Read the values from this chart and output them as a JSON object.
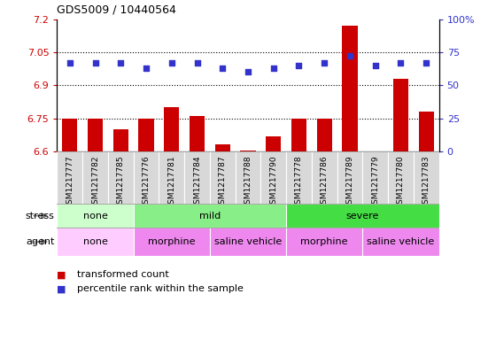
{
  "title": "GDS5009 / 10440564",
  "samples": [
    "GSM1217777",
    "GSM1217782",
    "GSM1217785",
    "GSM1217776",
    "GSM1217781",
    "GSM1217784",
    "GSM1217787",
    "GSM1217788",
    "GSM1217790",
    "GSM1217778",
    "GSM1217786",
    "GSM1217789",
    "GSM1217779",
    "GSM1217780",
    "GSM1217783"
  ],
  "transformed_count": [
    6.75,
    6.75,
    6.7,
    6.75,
    6.8,
    6.76,
    6.63,
    6.605,
    6.67,
    6.75,
    6.75,
    7.17,
    6.601,
    6.93,
    6.78
  ],
  "percentile_rank": [
    67,
    67,
    67,
    63,
    67,
    67,
    63,
    60,
    63,
    65,
    67,
    72,
    65,
    67,
    67
  ],
  "ylim_left": [
    6.6,
    7.2
  ],
  "ylim_right": [
    0,
    100
  ],
  "yticks_left": [
    6.6,
    6.75,
    6.9,
    7.05,
    7.2
  ],
  "yticks_right": [
    0,
    25,
    50,
    75,
    100
  ],
  "ytick_labels_left": [
    "6.6",
    "6.75",
    "6.9",
    "7.05",
    "7.2"
  ],
  "ytick_labels_right": [
    "0",
    "25",
    "50",
    "75",
    "100%"
  ],
  "hlines": [
    6.75,
    6.9,
    7.05
  ],
  "bar_color": "#cc0000",
  "dot_color": "#3333cc",
  "stress_groups": [
    {
      "label": "none",
      "start": 0,
      "end": 3,
      "color": "#ccffcc"
    },
    {
      "label": "mild",
      "start": 3,
      "end": 9,
      "color": "#88ee88"
    },
    {
      "label": "severe",
      "start": 9,
      "end": 15,
      "color": "#44dd44"
    }
  ],
  "agent_groups": [
    {
      "label": "none",
      "start": 0,
      "end": 3,
      "color": "#ffccff"
    },
    {
      "label": "morphine",
      "start": 3,
      "end": 6,
      "color": "#ee88ee"
    },
    {
      "label": "saline vehicle",
      "start": 6,
      "end": 9,
      "color": "#ee88ee"
    },
    {
      "label": "morphine",
      "start": 9,
      "end": 12,
      "color": "#ee88ee"
    },
    {
      "label": "saline vehicle",
      "start": 12,
      "end": 15,
      "color": "#ee88ee"
    }
  ],
  "stress_label": "stress",
  "agent_label": "agent",
  "legend_bar_label": "transformed count",
  "legend_dot_label": "percentile rank within the sample",
  "plot_bg": "#ffffff",
  "xtick_bg": "#d8d8d8"
}
